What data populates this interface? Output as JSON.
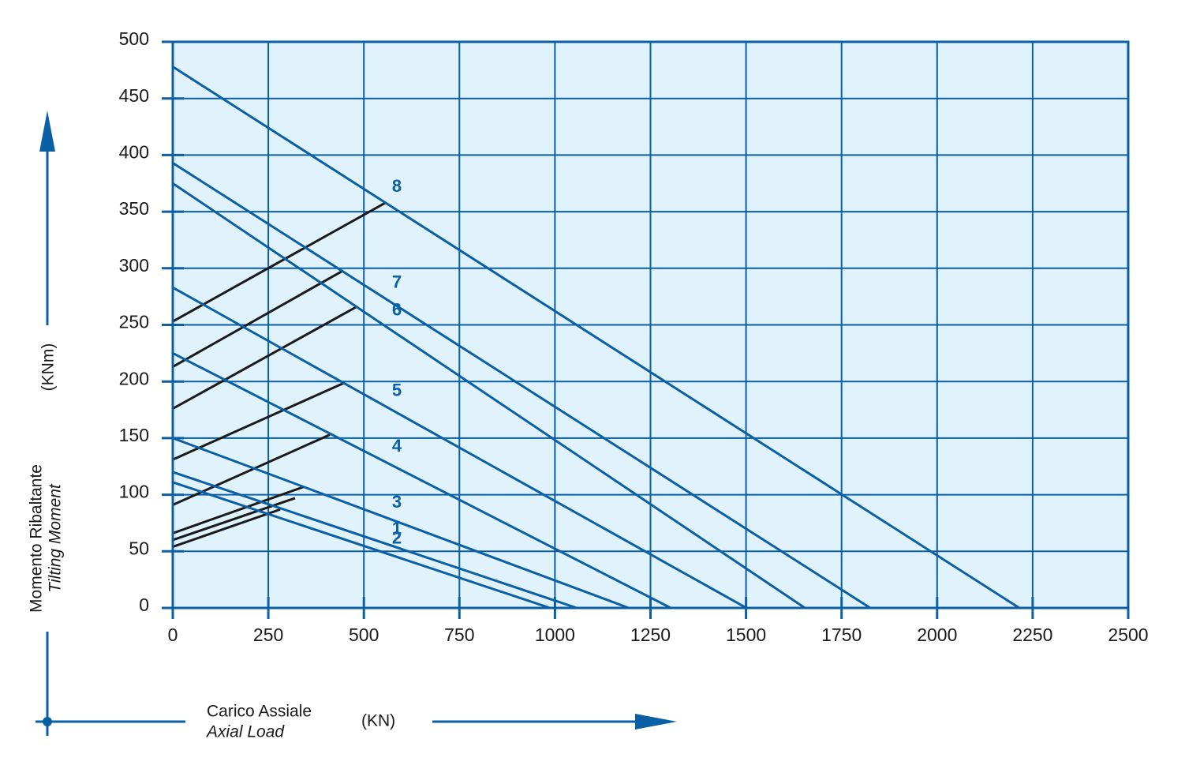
{
  "chart_data": {
    "type": "line",
    "y_label": "Momento Ribaltante",
    "y_label_en": "Tilting Moment",
    "y_unit": "(KNm)",
    "x_label": "Carico Assiale",
    "x_label_en": "Axial Load",
    "x_unit": "(KN)",
    "xlim": [
      0,
      2500
    ],
    "xticks": [
      0,
      250,
      500,
      750,
      1000,
      1250,
      1500,
      1750,
      2000,
      2250,
      2500
    ],
    "ylim": [
      0,
      500
    ],
    "yticks": [
      0,
      50,
      100,
      150,
      200,
      250,
      300,
      350,
      400,
      450,
      500
    ],
    "grid": true,
    "background": "#e0f2fc",
    "series": [
      {
        "name": "8",
        "color": "#0b5fa5",
        "x": [
          0,
          2215
        ],
        "values": [
          478,
          0
        ]
      },
      {
        "name": "7",
        "color": "#0b5fa5",
        "x": [
          0,
          1825
        ],
        "values": [
          393,
          0
        ]
      },
      {
        "name": "6",
        "color": "#0b5fa5",
        "x": [
          0,
          1654
        ],
        "values": [
          375,
          0
        ]
      },
      {
        "name": "5",
        "color": "#0b5fa5",
        "x": [
          0,
          1501
        ],
        "values": [
          283,
          0
        ]
      },
      {
        "name": "4",
        "color": "#0b5fa5",
        "x": [
          0,
          1303
        ],
        "values": [
          225,
          0
        ]
      },
      {
        "name": "3",
        "color": "#0b5fa5",
        "x": [
          0,
          1193
        ],
        "values": [
          150,
          0
        ]
      },
      {
        "name": "1",
        "color": "#0b5fa5",
        "x": [
          0,
          1057
        ],
        "values": [
          120,
          0
        ]
      },
      {
        "name": "2",
        "color": "#0b5fa5",
        "x": [
          0,
          987
        ],
        "values": [
          111,
          0
        ]
      }
    ],
    "limit_lines": [
      {
        "color": "#1a1a1a",
        "x": [
          0,
          557
        ],
        "values": [
          253,
          358
        ]
      },
      {
        "color": "#1a1a1a",
        "x": [
          0,
          446
        ],
        "values": [
          213,
          298
        ]
      },
      {
        "color": "#1a1a1a",
        "x": [
          0,
          481
        ],
        "values": [
          176,
          266
        ]
      },
      {
        "color": "#1a1a1a",
        "x": [
          0,
          450
        ],
        "values": [
          131,
          199
        ]
      },
      {
        "color": "#1a1a1a",
        "x": [
          0,
          411
        ],
        "values": [
          91,
          153
        ]
      },
      {
        "color": "#1a1a1a",
        "x": [
          0,
          343
        ],
        "values": [
          66,
          107
        ]
      },
      {
        "color": "#1a1a1a",
        "x": [
          0,
          320
        ],
        "values": [
          60,
          97
        ]
      },
      {
        "color": "#1a1a1a",
        "x": [
          0,
          281
        ],
        "values": [
          54,
          87
        ]
      }
    ]
  }
}
